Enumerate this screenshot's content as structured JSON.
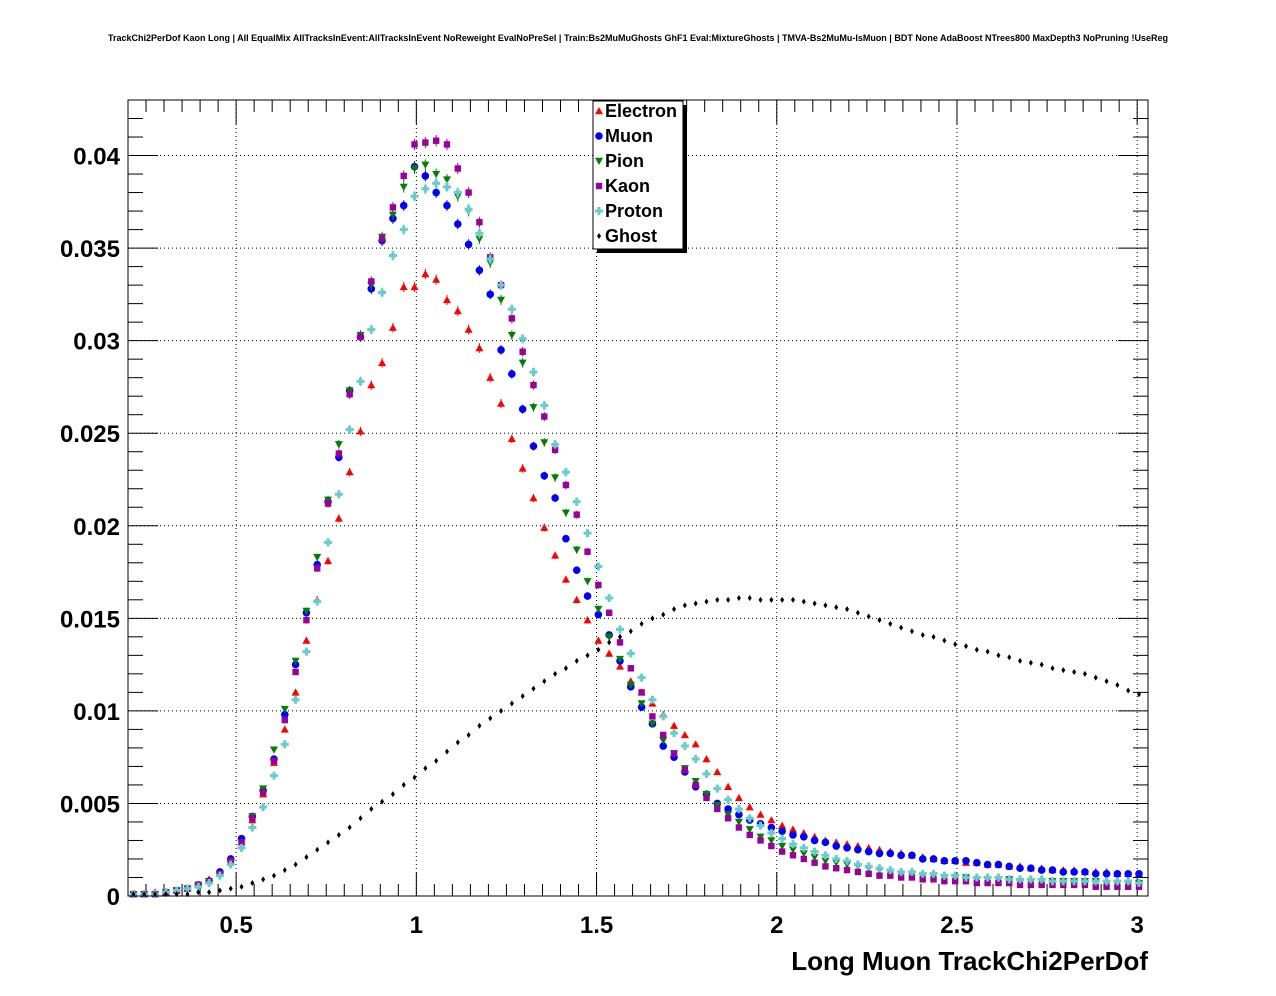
{
  "chart_data": {
    "type": "scatter",
    "title": "TrackChi2PerDof Kaon Long | All EqualMix AllTracksInEvent:AllTracksInEvent NoReweight EvalNoPreSel | Train:Bs2MuMuGhosts GhF1 Eval:MixtureGhosts | TMVA-Bs2MuMu-IsMuon | BDT None AdaBoost NTrees800 MaxDepth3 NoPruning !UseReg",
    "xlabel": "Long Muon TrackChi2PerDof",
    "ylabel": "",
    "xlim": [
      0.2,
      3.03
    ],
    "ylim": [
      0,
      0.043
    ],
    "grid": true,
    "legend_position": "top-center",
    "x_ticks": [
      0.5,
      1,
      1.5,
      2,
      2.5,
      3
    ],
    "x_tick_labels": [
      "0.5",
      "1",
      "1.5",
      "2",
      "2.5",
      "3"
    ],
    "y_ticks": [
      0,
      0.005,
      0.01,
      0.015,
      0.02,
      0.025,
      0.03,
      0.035,
      0.04
    ],
    "y_tick_labels": [
      "0",
      "0.005",
      "0.01",
      "0.015",
      "0.02",
      "0.025",
      "0.03",
      "0.035",
      "0.04"
    ],
    "x": [
      0.215,
      0.245,
      0.275,
      0.305,
      0.335,
      0.365,
      0.395,
      0.425,
      0.455,
      0.485,
      0.515,
      0.545,
      0.575,
      0.605,
      0.635,
      0.665,
      0.695,
      0.725,
      0.755,
      0.785,
      0.815,
      0.845,
      0.875,
      0.905,
      0.935,
      0.965,
      0.995,
      1.025,
      1.055,
      1.085,
      1.115,
      1.145,
      1.175,
      1.205,
      1.235,
      1.265,
      1.295,
      1.325,
      1.355,
      1.385,
      1.415,
      1.445,
      1.475,
      1.505,
      1.535,
      1.565,
      1.595,
      1.625,
      1.655,
      1.685,
      1.715,
      1.745,
      1.775,
      1.805,
      1.835,
      1.865,
      1.895,
      1.925,
      1.955,
      1.985,
      2.015,
      2.045,
      2.075,
      2.105,
      2.135,
      2.165,
      2.195,
      2.225,
      2.255,
      2.285,
      2.315,
      2.345,
      2.375,
      2.405,
      2.435,
      2.465,
      2.495,
      2.525,
      2.555,
      2.585,
      2.615,
      2.645,
      2.675,
      2.705,
      2.735,
      2.765,
      2.795,
      2.825,
      2.855,
      2.885,
      2.915,
      2.945,
      2.975,
      3.005
    ],
    "series": [
      {
        "name": "Electron",
        "color": "#ff0000",
        "marker": "triangle-up",
        "values": [
          0.0001,
          0.0001,
          0.0002,
          0.0002,
          0.0003,
          0.0004,
          0.0006,
          0.0009,
          0.0013,
          0.002,
          0.0029,
          0.0041,
          0.0055,
          0.0072,
          0.009,
          0.011,
          0.0138,
          0.016,
          0.0181,
          0.0204,
          0.0229,
          0.0251,
          0.0276,
          0.0288,
          0.0307,
          0.0329,
          0.0329,
          0.0336,
          0.0333,
          0.0322,
          0.0316,
          0.0306,
          0.0296,
          0.028,
          0.0266,
          0.0247,
          0.0231,
          0.0215,
          0.0199,
          0.0184,
          0.0171,
          0.016,
          0.0149,
          0.0138,
          0.0131,
          0.0124,
          0.0116,
          0.011,
          0.0104,
          0.0098,
          0.0092,
          0.0087,
          0.0082,
          0.0074,
          0.0067,
          0.0059,
          0.0053,
          0.0048,
          0.0044,
          0.0041,
          0.0038,
          0.0036,
          0.0034,
          0.0032,
          0.003,
          0.0029,
          0.0028,
          0.0027,
          0.0026,
          0.0025,
          0.0024,
          0.0023,
          0.0022,
          0.0021,
          0.002,
          0.0019,
          0.0019,
          0.0018,
          0.0018,
          0.0017,
          0.0017,
          0.0016,
          0.0016,
          0.0015,
          0.0015,
          0.0014,
          0.0014,
          0.0014,
          0.0013,
          0.0013,
          0.0013,
          0.0012,
          0.0012,
          0.0012
        ]
      },
      {
        "name": "Muon",
        "color": "#0000ff",
        "marker": "circle",
        "values": [
          0.0001,
          0.0001,
          0.0001,
          0.0002,
          0.0003,
          0.0004,
          0.0006,
          0.0008,
          0.0013,
          0.002,
          0.0031,
          0.0043,
          0.0057,
          0.0074,
          0.0098,
          0.0125,
          0.0153,
          0.0179,
          0.0213,
          0.0237,
          0.0273,
          0.0302,
          0.0328,
          0.0354,
          0.0366,
          0.0373,
          0.0394,
          0.0389,
          0.038,
          0.0373,
          0.0363,
          0.0352,
          0.0338,
          0.0325,
          0.0295,
          0.0282,
          0.0263,
          0.0243,
          0.0227,
          0.0215,
          0.0193,
          0.0176,
          0.0162,
          0.0152,
          0.0141,
          0.0127,
          0.0113,
          0.0102,
          0.0093,
          0.0081,
          0.0075,
          0.0067,
          0.0059,
          0.0055,
          0.005,
          0.0047,
          0.0044,
          0.0041,
          0.0039,
          0.0037,
          0.0035,
          0.0033,
          0.0032,
          0.003,
          0.0029,
          0.0027,
          0.0026,
          0.0025,
          0.0024,
          0.0023,
          0.0023,
          0.0022,
          0.0022,
          0.002,
          0.002,
          0.0019,
          0.0019,
          0.0019,
          0.0018,
          0.0017,
          0.0017,
          0.0016,
          0.0015,
          0.0015,
          0.0014,
          0.0014,
          0.0013,
          0.0013,
          0.0013,
          0.0012,
          0.0012,
          0.0012,
          0.0012,
          0.0012
        ]
      },
      {
        "name": "Pion",
        "color": "#008000",
        "marker": "triangle-down",
        "values": [
          0.0001,
          0.0001,
          0.0001,
          0.0002,
          0.0003,
          0.0004,
          0.0006,
          0.0008,
          0.0012,
          0.0019,
          0.0029,
          0.0043,
          0.0058,
          0.0079,
          0.0101,
          0.0127,
          0.0154,
          0.0183,
          0.0214,
          0.0244,
          0.0273,
          0.0303,
          0.033,
          0.0356,
          0.0368,
          0.0383,
          0.0393,
          0.0395,
          0.039,
          0.0387,
          0.0378,
          0.037,
          0.0355,
          0.0342,
          0.0322,
          0.0303,
          0.0288,
          0.0264,
          0.0245,
          0.0226,
          0.0207,
          0.0187,
          0.017,
          0.0155,
          0.014,
          0.0128,
          0.0114,
          0.0104,
          0.0093,
          0.0084,
          0.0077,
          0.0069,
          0.0062,
          0.0055,
          0.0049,
          0.0044,
          0.004,
          0.0036,
          0.0032,
          0.003,
          0.0027,
          0.0025,
          0.0023,
          0.0021,
          0.0019,
          0.0018,
          0.0017,
          0.0016,
          0.0015,
          0.0014,
          0.0013,
          0.0012,
          0.0012,
          0.0011,
          0.0011,
          0.001,
          0.001,
          0.001,
          0.0009,
          0.0009,
          0.0009,
          0.0009,
          0.0008,
          0.0008,
          0.0008,
          0.0008,
          0.0008,
          0.0008,
          0.0008,
          0.0008,
          0.0007,
          0.0007,
          0.0007,
          0.0007
        ]
      },
      {
        "name": "Kaon",
        "color": "#990099",
        "marker": "square",
        "values": [
          0.0001,
          0.0001,
          0.0001,
          0.0002,
          0.0003,
          0.0004,
          0.0006,
          0.0008,
          0.0012,
          0.0019,
          0.0029,
          0.0042,
          0.0056,
          0.0073,
          0.0095,
          0.0121,
          0.0149,
          0.0177,
          0.0212,
          0.0239,
          0.0271,
          0.0302,
          0.0332,
          0.0355,
          0.0372,
          0.0389,
          0.0406,
          0.0407,
          0.0408,
          0.0406,
          0.0393,
          0.038,
          0.0364,
          0.0345,
          0.033,
          0.0312,
          0.0294,
          0.0276,
          0.0259,
          0.0241,
          0.0222,
          0.0206,
          0.0186,
          0.0168,
          0.0153,
          0.0137,
          0.0123,
          0.011,
          0.0097,
          0.0087,
          0.0077,
          0.0068,
          0.006,
          0.0053,
          0.0047,
          0.0042,
          0.0037,
          0.0033,
          0.003,
          0.0027,
          0.0024,
          0.0022,
          0.002,
          0.0018,
          0.0016,
          0.0015,
          0.0014,
          0.0013,
          0.0012,
          0.0011,
          0.0011,
          0.001,
          0.001,
          0.0009,
          0.0009,
          0.0008,
          0.0008,
          0.0008,
          0.0007,
          0.0007,
          0.0007,
          0.0007,
          0.0006,
          0.0006,
          0.0006,
          0.0006,
          0.0006,
          0.0006,
          0.0006,
          0.0005,
          0.0005,
          0.0005,
          0.0005,
          0.0005
        ]
      },
      {
        "name": "Proton",
        "color": "#66cccc",
        "marker": "cross",
        "values": [
          0.0001,
          0.0001,
          0.0001,
          0.0002,
          0.0003,
          0.0004,
          0.0005,
          0.0007,
          0.0011,
          0.0017,
          0.0026,
          0.0037,
          0.0048,
          0.0065,
          0.0082,
          0.0106,
          0.0132,
          0.0159,
          0.0191,
          0.0217,
          0.0252,
          0.0278,
          0.0306,
          0.0326,
          0.0346,
          0.036,
          0.0378,
          0.0382,
          0.0385,
          0.0383,
          0.038,
          0.0371,
          0.0358,
          0.0344,
          0.033,
          0.0317,
          0.0301,
          0.0283,
          0.0265,
          0.0244,
          0.0229,
          0.0213,
          0.0196,
          0.0178,
          0.0161,
          0.0144,
          0.0131,
          0.0118,
          0.0106,
          0.0097,
          0.0088,
          0.0081,
          0.0074,
          0.0066,
          0.0058,
          0.0052,
          0.0047,
          0.0042,
          0.0038,
          0.0034,
          0.0031,
          0.0028,
          0.0026,
          0.0024,
          0.0022,
          0.002,
          0.0019,
          0.0017,
          0.0016,
          0.0015,
          0.0014,
          0.0013,
          0.0013,
          0.0012,
          0.0012,
          0.0011,
          0.0011,
          0.001,
          0.001,
          0.001,
          0.001,
          0.0009,
          0.0009,
          0.0009,
          0.0009,
          0.0008,
          0.0008,
          0.0008,
          0.0008,
          0.0008,
          0.0008,
          0.0008,
          0.0008,
          0.0007
        ]
      },
      {
        "name": "Ghost",
        "color": "#000000",
        "marker": "diamond",
        "values": [
          0.0001,
          0.0001,
          0.0001,
          0.0001,
          0.0001,
          0.0001,
          0.0002,
          0.0002,
          0.0003,
          0.0004,
          0.0005,
          0.0007,
          0.0009,
          0.0011,
          0.0014,
          0.0017,
          0.0021,
          0.0025,
          0.0029,
          0.0033,
          0.0037,
          0.0042,
          0.0047,
          0.0051,
          0.0055,
          0.006,
          0.0064,
          0.0069,
          0.0073,
          0.0078,
          0.0083,
          0.0087,
          0.0092,
          0.0096,
          0.01,
          0.0104,
          0.0108,
          0.0112,
          0.0116,
          0.012,
          0.0123,
          0.0127,
          0.013,
          0.0133,
          0.0137,
          0.014,
          0.0143,
          0.0147,
          0.015,
          0.0152,
          0.0155,
          0.0157,
          0.0158,
          0.0159,
          0.016,
          0.016,
          0.0161,
          0.0161,
          0.016,
          0.016,
          0.016,
          0.016,
          0.0159,
          0.0158,
          0.0157,
          0.0156,
          0.0155,
          0.0153,
          0.0151,
          0.0149,
          0.0147,
          0.0145,
          0.0143,
          0.0141,
          0.014,
          0.0138,
          0.0136,
          0.0135,
          0.0133,
          0.0132,
          0.013,
          0.0129,
          0.0127,
          0.0126,
          0.0125,
          0.0123,
          0.0122,
          0.0121,
          0.012,
          0.0118,
          0.0116,
          0.0114,
          0.0111,
          0.0109
        ]
      }
    ]
  }
}
